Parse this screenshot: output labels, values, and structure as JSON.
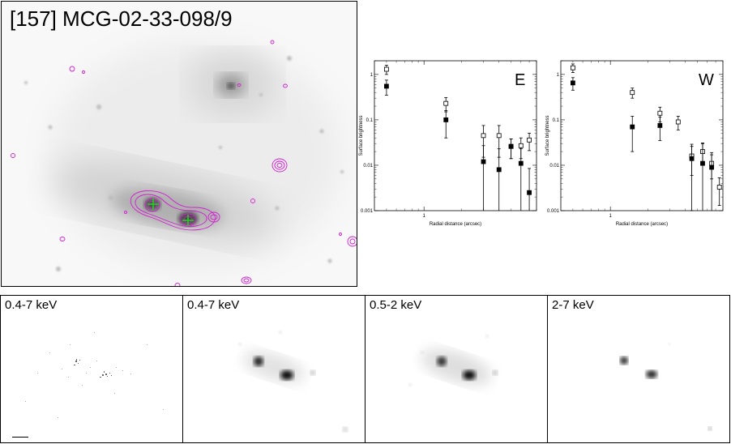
{
  "figure": {
    "title": "[157] MCG-02-33-098/9"
  },
  "profiles": {
    "east": {
      "panel_label": "E",
      "ylabel": "Surface brightness",
      "xlabel": "Radial distance (arcsec)",
      "y_ticks": [
        "1",
        "0.1",
        "0.01",
        "0.001"
      ],
      "x_ticks": [
        "1"
      ]
    },
    "west": {
      "panel_label": "W",
      "ylabel": "Surface brightness",
      "xlabel": "Radial distance (arcsec)",
      "y_ticks": [
        "1",
        "0.1",
        "0.01",
        "0.001"
      ],
      "x_ticks": [
        "1"
      ]
    }
  },
  "chart_data": [
    {
      "type": "scatter",
      "panel_label": "E",
      "xlabel": "Radial distance (arcsec)",
      "ylabel": "Surface brightness",
      "x_scale": "log",
      "y_scale": "log",
      "xlim": [
        0.4,
        8.0
      ],
      "ylim": [
        0.001,
        2.0
      ],
      "series": [
        {
          "marker": "open-square",
          "x": [
            0.5,
            1.5,
            3.0,
            4.0,
            5.0,
            6.0,
            7.0
          ],
          "y": [
            1.3,
            0.23,
            0.045,
            0.045,
            0.026,
            0.027,
            0.036
          ],
          "err_low": [
            0.3,
            0.08,
            0.03,
            0.03,
            0.012,
            0.013,
            0.015
          ],
          "err_high": [
            0.3,
            0.08,
            0.03,
            0.03,
            0.012,
            0.013,
            0.015
          ]
        },
        {
          "marker": "filled-square",
          "x": [
            0.5,
            1.5,
            3.0,
            4.0,
            5.0,
            6.0,
            7.0
          ],
          "y": [
            0.55,
            0.1,
            0.012,
            0.008,
            0.026,
            0.011,
            0.0025
          ],
          "err_low": [
            0.2,
            0.06,
            0.0115,
            0.0075,
            0.012,
            0.0105,
            0.0024
          ],
          "err_high": [
            0.2,
            0.06,
            0.015,
            0.015,
            0.012,
            0.012,
            0.006
          ]
        }
      ]
    },
    {
      "type": "scatter",
      "panel_label": "W",
      "xlabel": "Radial distance (arcsec)",
      "ylabel": "Surface brightness",
      "x_scale": "log",
      "y_scale": "log",
      "xlim": [
        0.4,
        8.0
      ],
      "ylim": [
        0.001,
        2.0
      ],
      "series": [
        {
          "marker": "open-square",
          "x": [
            0.5,
            1.5,
            2.5,
            3.5,
            4.5,
            5.5,
            6.5,
            7.5
          ],
          "y": [
            1.4,
            0.4,
            0.14,
            0.09,
            0.016,
            0.02,
            0.011,
            0.0033
          ],
          "err_low": [
            0.3,
            0.1,
            0.05,
            0.03,
            0.01,
            0.01,
            0.006,
            0.002
          ],
          "err_high": [
            0.3,
            0.1,
            0.05,
            0.03,
            0.01,
            0.01,
            0.006,
            0.002
          ]
        },
        {
          "marker": "filled-square",
          "x": [
            0.5,
            1.5,
            2.5,
            4.5,
            5.5,
            6.5
          ],
          "y": [
            0.65,
            0.07,
            0.075,
            0.014,
            0.011,
            0.009
          ],
          "err_low": [
            0.2,
            0.05,
            0.04,
            0.013,
            0.0105,
            0.0085
          ],
          "err_high": [
            0.2,
            0.05,
            0.04,
            0.015,
            0.02,
            0.01
          ]
        }
      ]
    }
  ],
  "bands": [
    {
      "label": "0.4-7 keV"
    },
    {
      "label": "0.4-7 keV"
    },
    {
      "label": "0.5-2 keV"
    },
    {
      "label": "2-7 keV"
    }
  ]
}
